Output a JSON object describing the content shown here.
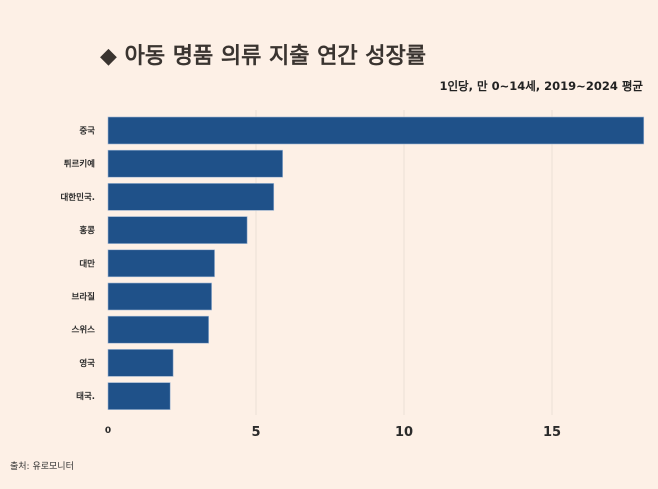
{
  "chart_data": {
    "type": "bar",
    "orientation": "horizontal",
    "title": "◆ 아동 명품 의류 지출 연간 성장률",
    "subtitle": "1인당, 만 0~14세, 2019~2024 평균",
    "categories": [
      "중국",
      "튀르키예",
      "대한민국.",
      "홍콩",
      "대만",
      "브라질",
      "스위스",
      "영국",
      "태국."
    ],
    "values": [
      18.1,
      5.9,
      5.6,
      4.7,
      3.6,
      3.5,
      3.4,
      2.2,
      2.1
    ],
    "xticks": [
      "0",
      "5",
      "10",
      "15"
    ],
    "xtick_values": [
      0,
      5,
      10,
      15
    ],
    "xlim": [
      0,
      18.1
    ],
    "xlabel": "",
    "ylabel": "",
    "grid": true,
    "source": "출처: 유로모니터"
  },
  "colors": {
    "bar": "#1f5189",
    "background": "#fdf0e6",
    "grid": "#ece0d6",
    "text": "#2b2b2b"
  }
}
